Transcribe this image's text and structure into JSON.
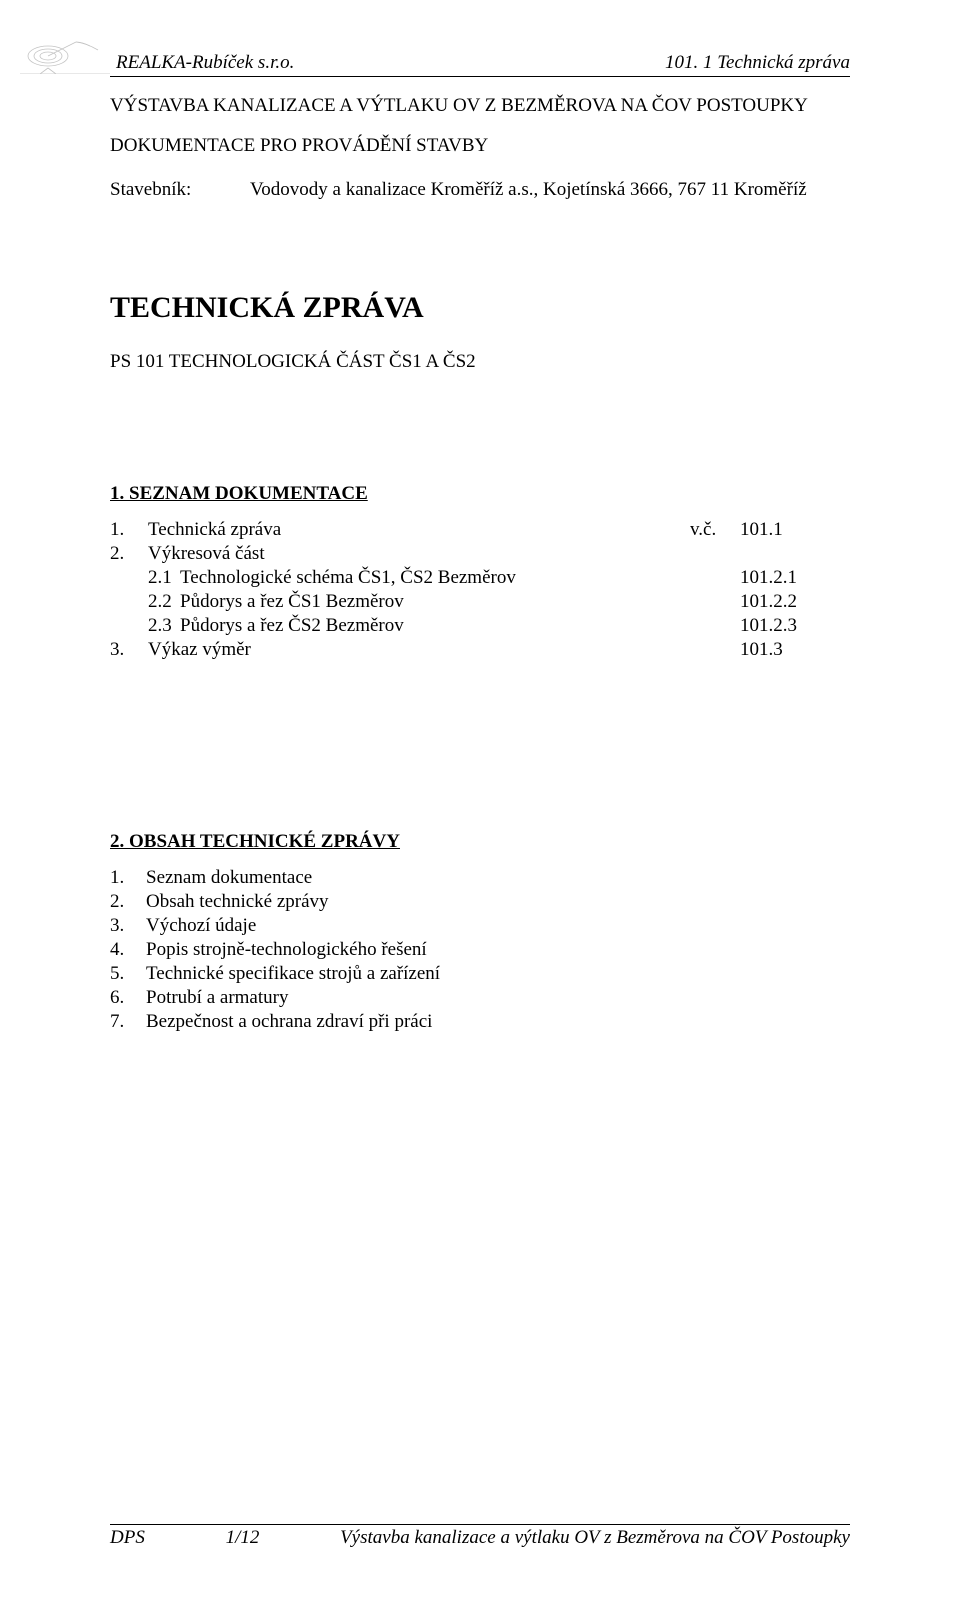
{
  "header": {
    "company": "REALKA-Rubíček s.r.o.",
    "doc_ref": "101. 1 Technická zpráva"
  },
  "title": "VÝSTAVBA KANALIZACE A VÝTLAKU OV Z BEZMĚROVA NA ČOV POSTOUPKY",
  "subtitle": "DOKUMENTACE PRO PROVÁDĚNÍ STAVBY",
  "stavebnik": {
    "label": "Stavebník:",
    "value": "Vodovody a kanalizace Kroměříž a.s., Kojetínská 3666, 767 11 Kroměříž"
  },
  "main_title": "TECHNICKÁ ZPRÁVA",
  "ps_line": "PS 101 TECHNOLOGICKÁ ČÁST ČS1 A ČS2",
  "section1": {
    "heading": "1.   SEZNAM DOKUMENTACE",
    "rows": [
      {
        "n": "1.",
        "sub": "",
        "label": "Technická zpráva",
        "code_prefix": "v.č.",
        "code": "101.1"
      },
      {
        "n": "2.",
        "sub": "",
        "label": "Výkresová část",
        "code_prefix": "",
        "code": ""
      },
      {
        "n": "",
        "sub": "2.1",
        "label": "Technologické schéma ČS1, ČS2 Bezměrov",
        "code_prefix": "",
        "code": "101.2.1"
      },
      {
        "n": "",
        "sub": "2.2",
        "label": "Půdorys a řez ČS1 Bezměrov",
        "code_prefix": "",
        "code": "101.2.2"
      },
      {
        "n": "",
        "sub": "2.3",
        "label": "Půdorys a řez ČS2 Bezměrov",
        "code_prefix": "",
        "code": "101.2.3"
      },
      {
        "n": "3.",
        "sub": "",
        "label": "Výkaz výměr",
        "code_prefix": "",
        "code": "101.3"
      }
    ]
  },
  "section2": {
    "heading": "2.   OBSAH TECHNICKÉ ZPRÁVY",
    "items": [
      {
        "n": "1.",
        "t": "Seznam dokumentace"
      },
      {
        "n": "2.",
        "t": "Obsah technické zprávy"
      },
      {
        "n": "3.",
        "t": "Výchozí údaje"
      },
      {
        "n": "4.",
        "t": "Popis strojně-technologického řešení"
      },
      {
        "n": "5.",
        "t": "Technické specifikace strojů a zařízení"
      },
      {
        "n": "6.",
        "t": "Potrubí a armatury"
      },
      {
        "n": "7.",
        "t": "Bezpečnost a ochrana zdraví při práci"
      }
    ]
  },
  "footer": {
    "left": "DPS",
    "center": "1/12",
    "right": "Výstavba kanalizace a výtlaku OV z Bezměrova na ČOV Postoupky"
  }
}
